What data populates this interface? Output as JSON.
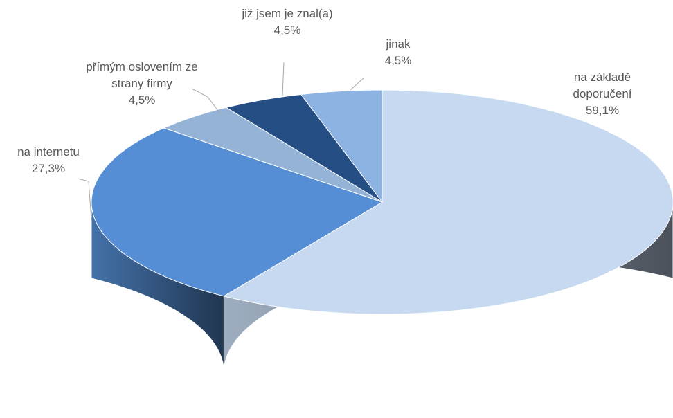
{
  "chart_data": {
    "type": "pie3d",
    "categories": [
      "na základě doporučení",
      "na internetu",
      "přímým oslovením ze strany firmy",
      "již jsem je znal(a)",
      "jinak"
    ],
    "values": [
      59.1,
      27.3,
      4.5,
      4.5,
      4.5
    ],
    "value_labels": [
      "59,1%",
      "27,3%",
      "4,5%",
      "4,5%",
      "4,5%"
    ],
    "colors": [
      "#c6d9f0",
      "#558ed5",
      "#95b3d7",
      "#254e85",
      "#8db3e2"
    ]
  }
}
